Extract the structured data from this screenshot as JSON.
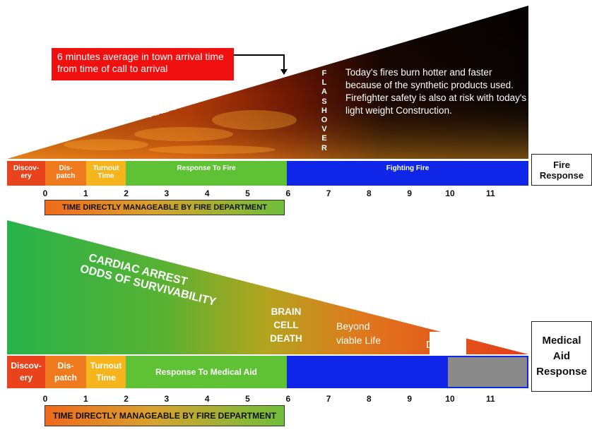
{
  "callout": {
    "text": "6 minutes average in town arrival time from time of call to arrival"
  },
  "fire": {
    "growth_label": "FIRE GROWTH",
    "flashover_letters": [
      "F",
      "L",
      "A",
      "S",
      "H",
      "O",
      "V",
      "E",
      "R"
    ],
    "note": "Today's fires burn hotter and faster because of the synthetic products used.  Firefighter safety is also at risk with today's light weight Construction.",
    "response_label": "Fire Response",
    "segments": [
      {
        "label": "Discov-\nery",
        "color": "#e8431c"
      },
      {
        "label": "Dis-\npatch",
        "color": "#f07a1e"
      },
      {
        "label": "Turnout\nTime",
        "color": "#f6b51c"
      },
      {
        "label": "Response To Fire",
        "color": "#5ec234"
      },
      {
        "label": "Fighting Fire",
        "color": "#0f25e8"
      }
    ],
    "ticks": [
      "0",
      "1",
      "2",
      "3",
      "4",
      "5",
      "6",
      "7",
      "8",
      "9",
      "10",
      "11"
    ],
    "managed_label": "TIME DIRECTLY MANAGEABLE BY FIRE DEPARTMENT"
  },
  "medical": {
    "survival_line1": "CARDIAC ARREST",
    "survival_line2": "ODDS OF SURVIVABILITY",
    "brain_death": "BRAIN\nCELL\nDEATH",
    "beyond": "Beyond\nviable Life",
    "death": "Death",
    "response_label": "Medical\nAid\nResponse",
    "segments": [
      {
        "label": "Discov-\nery",
        "color": "#e8431c"
      },
      {
        "label": "Dis-\npatch",
        "color": "#f07a1e"
      },
      {
        "label": "Turnout\nTime",
        "color": "#f6b51c"
      },
      {
        "label": "Response To Medical Aid",
        "color": "#5ec234"
      },
      {
        "label": "",
        "color": "#0f25e8"
      },
      {
        "label": "",
        "color": "#8a8a8a"
      }
    ],
    "ticks": [
      "0",
      "1",
      "2",
      "3",
      "4",
      "5",
      "6",
      "7",
      "8",
      "9",
      "10",
      "11"
    ],
    "managed_label": "TIME DIRECTLY MANAGEABLE BY FIRE DEPARTMENT"
  }
}
